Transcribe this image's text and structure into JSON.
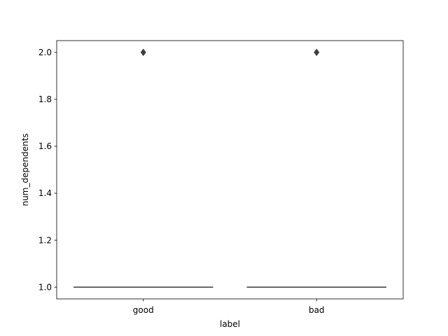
{
  "chart_data": {
    "type": "box",
    "title": "",
    "xlabel": "label",
    "ylabel": "num_dependents",
    "categories": [
      "good",
      "bad"
    ],
    "ylim": [
      0.95,
      2.05
    ],
    "yticks": [
      1.0,
      1.2,
      1.4,
      1.6,
      1.8,
      2.0
    ],
    "ytick_labels": [
      "1.0",
      "1.2",
      "1.4",
      "1.6",
      "1.8",
      "2.0"
    ],
    "boxes": [
      {
        "category": "good",
        "q1": 1.0,
        "median": 1.0,
        "q3": 1.0,
        "whisker_low": 1.0,
        "whisker_high": 1.0,
        "outliers": [
          2.0
        ]
      },
      {
        "category": "bad",
        "q1": 1.0,
        "median": 1.0,
        "q3": 1.0,
        "whisker_low": 1.0,
        "whisker_high": 1.0,
        "outliers": [
          2.0
        ]
      }
    ],
    "grid": false,
    "legend": "none",
    "colors": {
      "box_line": "#3f3f3f",
      "outlier": "#3f3f3f",
      "axis": "#000000"
    }
  }
}
